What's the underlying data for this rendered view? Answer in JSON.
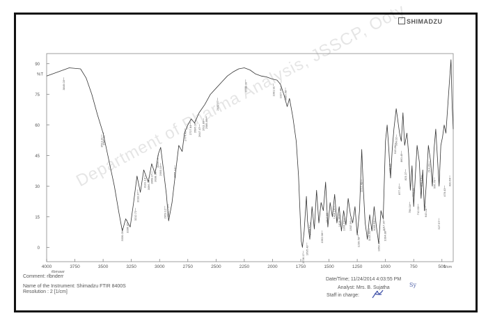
{
  "brand": "SHIMADZU",
  "watermark": "Department of Pharma Analysis, JSSCP, Ooty",
  "chart_data": {
    "type": "line",
    "ylabel": "%T",
    "xlabel": "1/cm",
    "xlim": [
      4000,
      400
    ],
    "ylim": [
      -7,
      95
    ],
    "x_ticks": [
      4000,
      3750,
      3500,
      3250,
      3000,
      2750,
      2500,
      2250,
      2000,
      1750,
      1500,
      1250,
      1000,
      750,
      500
    ],
    "x_tick_labels": [
      "4000",
      "3750",
      "3500",
      "3250",
      "3000",
      "2750",
      "2500",
      "2250",
      "2000",
      "1750",
      "1500",
      "1250",
      "1000",
      "750",
      "500"
    ],
    "y_ticks": [
      0,
      15,
      30,
      45,
      60,
      75,
      90
    ],
    "y_tick_labels": [
      "0",
      "15",
      "30",
      "45",
      "60",
      "75",
      "90"
    ],
    "x_axis_note": "rlbmawr",
    "series": [
      {
        "points": [
          [
            4000,
            84
          ],
          [
            3900,
            86
          ],
          [
            3800,
            88
          ],
          [
            3700,
            87.5
          ],
          [
            3650,
            83
          ],
          [
            3600,
            75
          ],
          [
            3550,
            65
          ],
          [
            3500,
            56
          ],
          [
            3450,
            43
          ],
          [
            3400,
            30
          ],
          [
            3360,
            17
          ],
          [
            3330,
            8
          ],
          [
            3300,
            14
          ],
          [
            3260,
            10
          ],
          [
            3230,
            22
          ],
          [
            3200,
            35
          ],
          [
            3170,
            27
          ],
          [
            3140,
            38
          ],
          [
            3100,
            32
          ],
          [
            3070,
            41
          ],
          [
            3040,
            36
          ],
          [
            3010,
            46
          ],
          [
            2990,
            49
          ],
          [
            2970,
            40
          ],
          [
            2940,
            26
          ],
          [
            2920,
            13
          ],
          [
            2890,
            22
          ],
          [
            2860,
            36
          ],
          [
            2830,
            50
          ],
          [
            2800,
            47
          ],
          [
            2780,
            56
          ],
          [
            2750,
            60
          ],
          [
            2720,
            63
          ],
          [
            2690,
            61
          ],
          [
            2650,
            66
          ],
          [
            2600,
            70
          ],
          [
            2550,
            75
          ],
          [
            2500,
            78
          ],
          [
            2450,
            81
          ],
          [
            2400,
            84
          ],
          [
            2350,
            86
          ],
          [
            2300,
            87.5
          ],
          [
            2250,
            88
          ],
          [
            2200,
            87
          ],
          [
            2150,
            85
          ],
          [
            2100,
            84
          ],
          [
            2050,
            83.5
          ],
          [
            2000,
            82.5
          ],
          [
            1960,
            82
          ],
          [
            1930,
            80
          ],
          [
            1900,
            75
          ],
          [
            1870,
            69
          ],
          [
            1850,
            73
          ],
          [
            1820,
            64
          ],
          [
            1790,
            52
          ],
          [
            1770,
            35
          ],
          [
            1755,
            15
          ],
          [
            1745,
            3
          ],
          [
            1735,
            0
          ],
          [
            1720,
            8
          ],
          [
            1700,
            25
          ],
          [
            1690,
            13
          ],
          [
            1670,
            4
          ],
          [
            1650,
            20
          ],
          [
            1630,
            9
          ],
          [
            1610,
            28
          ],
          [
            1590,
            12
          ],
          [
            1570,
            22
          ],
          [
            1550,
            18
          ],
          [
            1530,
            32
          ],
          [
            1510,
            10
          ],
          [
            1490,
            22
          ],
          [
            1470,
            15
          ],
          [
            1450,
            26
          ],
          [
            1430,
            12
          ],
          [
            1410,
            20
          ],
          [
            1390,
            8
          ],
          [
            1370,
            18
          ],
          [
            1350,
            11
          ],
          [
            1330,
            24
          ],
          [
            1310,
            16
          ],
          [
            1290,
            12
          ],
          [
            1270,
            20
          ],
          [
            1250,
            6
          ],
          [
            1230,
            18
          ],
          [
            1210,
            48
          ],
          [
            1195,
            28
          ],
          [
            1180,
            12
          ],
          [
            1160,
            4
          ],
          [
            1140,
            16
          ],
          [
            1120,
            8
          ],
          [
            1100,
            20
          ],
          [
            1080,
            10
          ],
          [
            1060,
            2
          ],
          [
            1040,
            18
          ],
          [
            1020,
            14
          ],
          [
            1000,
            52
          ],
          [
            985,
            60
          ],
          [
            970,
            48
          ],
          [
            955,
            34
          ],
          [
            940,
            48
          ],
          [
            925,
            58
          ],
          [
            905,
            68
          ],
          [
            890,
            62
          ],
          [
            875,
            56
          ],
          [
            860,
            52
          ],
          [
            845,
            66
          ],
          [
            830,
            50
          ],
          [
            810,
            56
          ],
          [
            795,
            46
          ],
          [
            780,
            28
          ],
          [
            765,
            40
          ],
          [
            750,
            20
          ],
          [
            735,
            36
          ],
          [
            720,
            50
          ],
          [
            700,
            42
          ],
          [
            685,
            24
          ],
          [
            670,
            38
          ],
          [
            655,
            18
          ],
          [
            640,
            30
          ],
          [
            620,
            50
          ],
          [
            600,
            42
          ],
          [
            585,
            30
          ],
          [
            570,
            48
          ],
          [
            555,
            58
          ],
          [
            540,
            44
          ],
          [
            525,
            30
          ],
          [
            510,
            50
          ],
          [
            495,
            54
          ],
          [
            480,
            60
          ],
          [
            465,
            56
          ],
          [
            450,
            68
          ],
          [
            435,
            80
          ],
          [
            420,
            92
          ],
          [
            410,
            70
          ],
          [
            400,
            58
          ]
        ]
      }
    ],
    "peak_labels": [
      {
        "x": 3849.03,
        "y": 83
      },
      {
        "x": 3513.31,
        "y": 55
      },
      {
        "x": 3495.81,
        "y": 56
      },
      {
        "x": 3330.21,
        "y": 9
      },
      {
        "x": 3286.35,
        "y": 13
      },
      {
        "x": 3212.72,
        "y": 19
      },
      {
        "x": 3193.37,
        "y": 28
      },
      {
        "x": 3131.14,
        "y": 35
      },
      {
        "x": 3096.72,
        "y": 34
      },
      {
        "x": 3068.27,
        "y": 37
      },
      {
        "x": 3038.39,
        "y": 38
      },
      {
        "x": 3016.77,
        "y": 45
      },
      {
        "x": 2993.15,
        "y": 41
      },
      {
        "x": 2953.12,
        "y": 20
      },
      {
        "x": 2925.71,
        "y": 21
      },
      {
        "x": 2865.12,
        "y": 40
      },
      {
        "x": 2774.49,
        "y": 58
      },
      {
        "x": 2727.84,
        "y": 61
      },
      {
        "x": 2686.16,
        "y": 62
      },
      {
        "x": 2647.47,
        "y": 60
      },
      {
        "x": 2611.89,
        "y": 63
      },
      {
        "x": 2585.86,
        "y": 64
      },
      {
        "x": 2487.57,
        "y": 73
      },
      {
        "x": 2238.0,
        "y": 82
      },
      {
        "x": 1991.91,
        "y": 80
      },
      {
        "x": 1927.46,
        "y": 79
      },
      {
        "x": 1885.68,
        "y": 78
      },
      {
        "x": 1728.17,
        "y": -2
      },
      {
        "x": 1695.43,
        "y": 2
      },
      {
        "x": 1668.51,
        "y": 12
      },
      {
        "x": 1562.98,
        "y": 8
      },
      {
        "x": 1517.53,
        "y": 18
      },
      {
        "x": 1454.14,
        "y": 20
      },
      {
        "x": 1408.75,
        "y": 16
      },
      {
        "x": 1366.63,
        "y": 14
      },
      {
        "x": 1307.96,
        "y": 14
      },
      {
        "x": 1239.58,
        "y": 6
      },
      {
        "x": 1212.48,
        "y": 33
      },
      {
        "x": 1143.8,
        "y": 9
      },
      {
        "x": 1099.94,
        "y": 14
      },
      {
        "x": 1058.94,
        "y": 4
      },
      {
        "x": 1017.36,
        "y": 14
      },
      {
        "x": 1004.88,
        "y": 9
      },
      {
        "x": 962.13,
        "y": 42
      },
      {
        "x": 915.86,
        "y": 51
      },
      {
        "x": 904.02,
        "y": 55
      },
      {
        "x": 877.42,
        "y": 31
      },
      {
        "x": 860.49,
        "y": 47
      },
      {
        "x": 823.27,
        "y": 38
      },
      {
        "x": 784.04,
        "y": 22
      },
      {
        "x": 755.59,
        "y": 30
      },
      {
        "x": 712.53,
        "y": 21
      },
      {
        "x": 679.13,
        "y": 35
      },
      {
        "x": 643.28,
        "y": 20
      },
      {
        "x": 614.39,
        "y": 42
      },
      {
        "x": 566.79,
        "y": 34
      },
      {
        "x": 527.57,
        "y": 14
      },
      {
        "x": 478.43,
        "y": 30
      },
      {
        "x": 430.64,
        "y": 35
      }
    ]
  },
  "info": {
    "comment": "Comment: rlbnderr",
    "instrument": "Name of the Instrument: Shimadzu FTIR 8400S",
    "resolution": "Resolution :   2 [1/cm]",
    "datetime": "Date/Time; 11/24/2014 4:03:55 PM",
    "analyst": "Analyst: Mrs. B. Sujatha",
    "staff": "Staff in charge:",
    "signature_initials": "Sy"
  }
}
